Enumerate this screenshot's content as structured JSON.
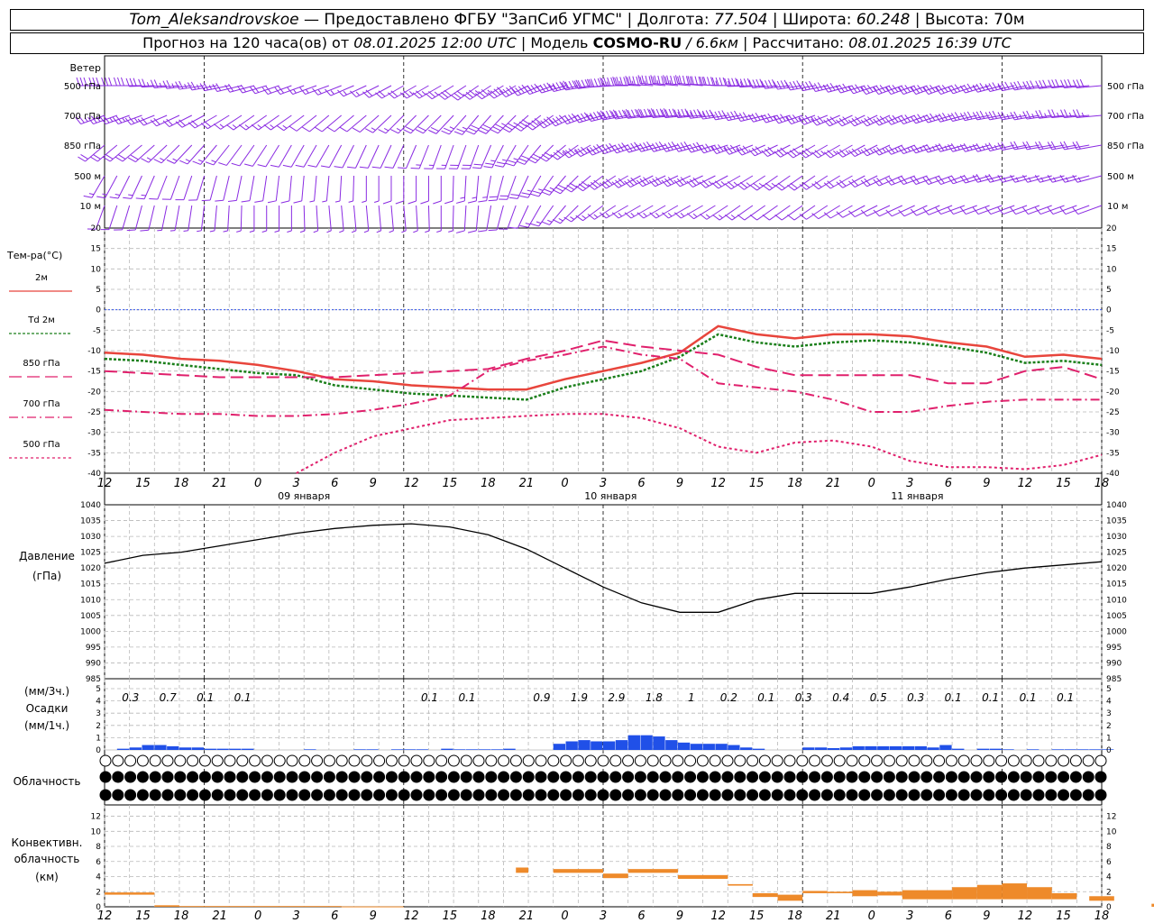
{
  "header": {
    "station": "Tom_Aleksandrovskoe",
    "provider": " — Предоставлено ФГБУ \"ЗапСиб УГМС\" | Долгота: ",
    "lon": "77.504",
    "lat_label": " | Широта: ",
    "lat": "60.248",
    "alt_label": " | Высота: 70м",
    "fc_label": "Прогноз на 120 часа(ов) от ",
    "fc_from": "08.01.2025 12:00 UTC",
    "model_label": "  | Модель ",
    "model": "COSMO-RU",
    "res": " / 6.6км",
    "calc_label": " | Рассчитано: ",
    "calc": "08.01.2025 16:39 UTC"
  },
  "colors": {
    "t2m": "#e8453c",
    "td2m": "#1a7f1a",
    "t850": "#e0206c",
    "t700": "#e0206c",
    "t500": "#e0206c",
    "wind": "#8a2be2",
    "precip": "#2050e8",
    "conv": "#ee8a2a",
    "zero": "#3355ee"
  },
  "time": {
    "hour_labels": [
      "12",
      "15",
      "18",
      "21",
      "0",
      "3",
      "6",
      "9",
      "12",
      "15",
      "18",
      "21",
      "0",
      "3",
      "6",
      "9",
      "12",
      "15",
      "18",
      "21",
      "0",
      "3",
      "6",
      "9",
      "12",
      "15",
      "18"
    ],
    "day_labels": [
      "09 января",
      "10 января",
      "11 января"
    ]
  },
  "chart_data": [
    {
      "type": "barbs",
      "title": "Ветер",
      "levels": [
        "500 гПа",
        "700 гПа",
        "850 гПа",
        "500 м",
        "10   м"
      ],
      "directions_deg": [
        [
          270,
          270,
          265,
          260,
          255,
          250,
          250,
          245,
          240,
          240,
          235,
          240,
          250,
          260,
          270,
          275,
          275,
          270,
          265,
          260,
          255,
          250,
          250,
          250,
          255,
          260,
          265
        ],
        [
          250,
          250,
          245,
          240,
          235,
          235,
          230,
          230,
          225,
          225,
          220,
          225,
          235,
          250,
          260,
          265,
          265,
          260,
          255,
          250,
          245,
          245,
          250,
          255,
          260,
          260,
          265
        ],
        [
          230,
          230,
          225,
          220,
          215,
          210,
          210,
          205,
          205,
          200,
          200,
          210,
          225,
          240,
          250,
          255,
          255,
          250,
          245,
          240,
          240,
          245,
          250,
          255,
          255,
          260,
          260
        ],
        [
          210,
          205,
          200,
          195,
          190,
          185,
          185,
          180,
          180,
          180,
          185,
          200,
          215,
          230,
          240,
          245,
          245,
          240,
          235,
          235,
          240,
          245,
          250,
          250,
          255,
          255,
          255
        ],
        [
          200,
          195,
          190,
          185,
          180,
          180,
          175,
          175,
          175,
          180,
          185,
          200,
          215,
          230,
          240,
          240,
          240,
          235,
          235,
          235,
          240,
          245,
          245,
          250,
          250,
          250,
          250
        ]
      ],
      "speeds_kt": [
        [
          30,
          30,
          25,
          25,
          20,
          20,
          15,
          15,
          20,
          25,
          30,
          40,
          45,
          50,
          55,
          55,
          50,
          45,
          40,
          40,
          35,
          35,
          35,
          35,
          35,
          30,
          30
        ],
        [
          25,
          25,
          20,
          20,
          15,
          15,
          10,
          10,
          15,
          20,
          25,
          35,
          40,
          45,
          50,
          50,
          45,
          40,
          35,
          35,
          30,
          30,
          30,
          30,
          30,
          25,
          25
        ],
        [
          20,
          20,
          15,
          15,
          10,
          10,
          10,
          10,
          10,
          15,
          20,
          25,
          30,
          35,
          40,
          40,
          40,
          35,
          30,
          30,
          25,
          25,
          25,
          25,
          25,
          20,
          20
        ],
        [
          15,
          15,
          10,
          10,
          10,
          10,
          5,
          5,
          10,
          10,
          15,
          20,
          25,
          30,
          30,
          30,
          30,
          25,
          25,
          20,
          20,
          20,
          20,
          20,
          20,
          15,
          15
        ],
        [
          10,
          10,
          5,
          5,
          5,
          5,
          5,
          5,
          5,
          5,
          10,
          10,
          15,
          15,
          15,
          15,
          15,
          15,
          10,
          10,
          10,
          10,
          10,
          10,
          10,
          10,
          10
        ]
      ]
    },
    {
      "type": "line",
      "title": "Тем-ра(°C)",
      "x": [
        "12",
        "15",
        "18",
        "21",
        "0",
        "3",
        "6",
        "9",
        "12",
        "15",
        "18",
        "21",
        "0",
        "3",
        "6",
        "9",
        "12",
        "15",
        "18",
        "21",
        "0",
        "3",
        "6",
        "9",
        "12",
        "15",
        "18"
      ],
      "ylim": [
        -40,
        20
      ],
      "yticks": [
        20,
        15,
        10,
        5,
        0,
        -5,
        -10,
        -15,
        -20,
        -25,
        -30,
        -35,
        -40
      ],
      "series": [
        {
          "name": "2м",
          "key": "t2m",
          "dash": "",
          "values": [
            -10.5,
            -11,
            -12,
            -12.5,
            -13.5,
            -15,
            -17,
            -17.5,
            -18.5,
            -19,
            -19.5,
            -19.5,
            -17,
            -15,
            -13,
            -10.5,
            -4,
            -6,
            -7,
            -6,
            -6,
            -6.5,
            -8,
            -9,
            -11.5,
            -11,
            -12
          ]
        },
        {
          "name": "Td 2м",
          "key": "td2m",
          "dash": "3,2",
          "values": [
            -12,
            -12.5,
            -13.5,
            -14.5,
            -15.5,
            -16,
            -18.5,
            -19.5,
            -20.5,
            -21,
            -21.5,
            -22,
            -19,
            -17,
            -15,
            -11.5,
            -6,
            -8,
            -9,
            -8,
            -7.5,
            -8,
            -9,
            -10.5,
            -13,
            -12.5,
            -13.5
          ]
        },
        {
          "name": "850 гПа",
          "key": "t850",
          "dash": "14,6",
          "values": [
            -15,
            -15.5,
            -16,
            -16.5,
            -16.5,
            -16.5,
            -16.5,
            -16,
            -15.5,
            -15,
            -14.5,
            -12,
            -10,
            -7.5,
            -9,
            -10,
            -11,
            -14,
            -16,
            -16,
            -16,
            -16,
            -18,
            -18,
            -15,
            -14,
            -17
          ]
        },
        {
          "name": "700 гПа",
          "key": "t700",
          "dash": "10,4,2,4",
          "values": [
            -24.5,
            -25,
            -25.5,
            -25.5,
            -26,
            -26,
            -25.5,
            -24.5,
            -23,
            -21,
            -15,
            -12.5,
            -11,
            -9,
            -11,
            -12,
            -18,
            -19,
            -20,
            -22,
            -25,
            -25,
            -23.5,
            -22.5,
            -22,
            -22,
            -22
          ]
        },
        {
          "name": "500 гПа",
          "key": "t500",
          "dash": "3,3",
          "values": [
            null,
            null,
            null,
            null,
            null,
            -40,
            -35,
            -31,
            -29,
            -27,
            -26.5,
            -26,
            -25.5,
            -25.5,
            -26.5,
            -29,
            -33.5,
            -35,
            -32.5,
            -32,
            -33.5,
            -37,
            -38.5,
            -38.5,
            -39,
            -38,
            -35.5
          ]
        }
      ]
    },
    {
      "type": "line",
      "title": "Давление",
      "unit": "(гПа)",
      "ylim": [
        985,
        1040
      ],
      "yticks": [
        1040,
        1035,
        1030,
        1025,
        1020,
        1015,
        1010,
        1005,
        1000,
        995,
        990,
        985
      ],
      "values": [
        1021.5,
        1024,
        1025,
        1027,
        1029,
        1031,
        1032.5,
        1033.5,
        1034,
        1033,
        1030.5,
        1026,
        1020,
        1014,
        1009,
        1006,
        1006,
        1010,
        1012,
        1012,
        1012,
        1014,
        1016.5,
        1018.5,
        1020,
        1021,
        1022
      ]
    },
    {
      "type": "bar",
      "title": "Осадки",
      "unit_top": "(мм/3ч.)",
      "unit_bottom": "(мм/1ч.)",
      "ylim": [
        0,
        5
      ],
      "yticks": [
        5,
        4,
        3,
        2,
        1,
        0
      ],
      "labels_3h": [
        "0.3",
        "0.7",
        "0.1",
        "0.1",
        "",
        "",
        "",
        "",
        "0.1",
        "0.1",
        "",
        "0.9",
        "1.9",
        "2.9",
        "1.8",
        "1",
        "0.2",
        "0.1",
        "0.3",
        "0.4",
        "0.5",
        "0.3",
        "0.1",
        "0.1",
        "0.1",
        "0.1"
      ],
      "values_1h": [
        0,
        0.1,
        0.2,
        0.4,
        0.4,
        0.3,
        0.2,
        0.2,
        0.1,
        0.1,
        0.1,
        0.1,
        0,
        0,
        0,
        0,
        0.05,
        0,
        0,
        0,
        0.05,
        0.05,
        0,
        0.05,
        0.05,
        0.05,
        0,
        0.1,
        0.05,
        0.05,
        0.05,
        0.05,
        0.1,
        0,
        0,
        0,
        0.5,
        0.7,
        0.8,
        0.7,
        0.7,
        0.8,
        1.2,
        1.2,
        1.1,
        0.8,
        0.6,
        0.5,
        0.5,
        0.5,
        0.4,
        0.2,
        0.1,
        0,
        0,
        0,
        0.2,
        0.2,
        0.15,
        0.2,
        0.3,
        0.3,
        0.3,
        0.3,
        0.3,
        0.3,
        0.2,
        0.4,
        0.1,
        0,
        0.1,
        0.1,
        0.05,
        0,
        0.05,
        0,
        0.05,
        0.05,
        0.05,
        0.05,
        0.05
      ]
    },
    {
      "type": "symbols",
      "title": "Облачность",
      "rows": [
        [
          0,
          0,
          0,
          0,
          0,
          0,
          0,
          0,
          0,
          0,
          0,
          0,
          0,
          0,
          0,
          0,
          0,
          0,
          0,
          0,
          0,
          0,
          0,
          0,
          0,
          0,
          0,
          0,
          0,
          0,
          0,
          0,
          0,
          0,
          0,
          0,
          0,
          0,
          0,
          0,
          0,
          0,
          0,
          0,
          0,
          0,
          0,
          0,
          0,
          0,
          0,
          0,
          0,
          0,
          0,
          0,
          0,
          0,
          0,
          0,
          0,
          0,
          0,
          0,
          0,
          0,
          0,
          0,
          0,
          0,
          0,
          0,
          0,
          0,
          0,
          0,
          0,
          0,
          0,
          0,
          0
        ],
        [
          8,
          8,
          8,
          8,
          8,
          8,
          8,
          8,
          8,
          8,
          8,
          8,
          8,
          8,
          8,
          8,
          8,
          8,
          8,
          8,
          8,
          8,
          8,
          8,
          8,
          8,
          8,
          8,
          8,
          8,
          8,
          8,
          8,
          8,
          8,
          8,
          8,
          8,
          8,
          8,
          8,
          8,
          8,
          8,
          8,
          8,
          8,
          8,
          8,
          8,
          8,
          8,
          8,
          8,
          8,
          8,
          8,
          8,
          8,
          8,
          8,
          8,
          8,
          8,
          8,
          8,
          8,
          8,
          8,
          8,
          8,
          8,
          8,
          8,
          8,
          8,
          8,
          8,
          8,
          8,
          8
        ],
        [
          8,
          8,
          8,
          8,
          8,
          8,
          8,
          8,
          8,
          8,
          8,
          8,
          8,
          8,
          8,
          8,
          8,
          8,
          8,
          8,
          8,
          8,
          8,
          8,
          8,
          8,
          8,
          8,
          8,
          8,
          8,
          8,
          8,
          8,
          8,
          8,
          8,
          8,
          8,
          8,
          8,
          8,
          8,
          8,
          8,
          8,
          8,
          8,
          8,
          8,
          8,
          8,
          8,
          8,
          8,
          8,
          8,
          8,
          8,
          8,
          8,
          8,
          8,
          8,
          8,
          8,
          8,
          8,
          8,
          8,
          8,
          8,
          8,
          8,
          8,
          8,
          8,
          8,
          8,
          8,
          8
        ]
      ]
    },
    {
      "type": "bar",
      "title": "Конвективн.",
      "title2": "облачность",
      "unit": "(км)",
      "ylim": [
        0,
        13
      ],
      "yticks": [
        12,
        10,
        8,
        6,
        4,
        2,
        0
      ],
      "bars": [
        {
          "x0": 0,
          "x1": 4,
          "base": 1.6,
          "top": 1.9
        },
        {
          "x0": 4,
          "x1": 6,
          "base": 0,
          "top": 0.2
        },
        {
          "x0": 6,
          "x1": 19,
          "base": 0,
          "top": 0.1
        },
        {
          "x0": 19,
          "x1": 24,
          "base": 0,
          "top": 0.05
        },
        {
          "x0": 33,
          "x1": 34,
          "base": 4.5,
          "top": 5.2
        },
        {
          "x0": 36,
          "x1": 40,
          "base": 4.5,
          "top": 5
        },
        {
          "x0": 40,
          "x1": 42,
          "base": 3.8,
          "top": 4.4
        },
        {
          "x0": 42,
          "x1": 46,
          "base": 4.5,
          "top": 5
        },
        {
          "x0": 46,
          "x1": 50,
          "base": 3.7,
          "top": 4.2
        },
        {
          "x0": 50,
          "x1": 52,
          "base": 2.8,
          "top": 3
        },
        {
          "x0": 52,
          "x1": 54,
          "base": 1.3,
          "top": 1.8
        },
        {
          "x0": 54,
          "x1": 56,
          "base": 0.8,
          "top": 1.6
        },
        {
          "x0": 56,
          "x1": 58,
          "base": 1.8,
          "top": 2.1
        },
        {
          "x0": 58,
          "x1": 60,
          "base": 1.8,
          "top": 2
        },
        {
          "x0": 60,
          "x1": 62,
          "base": 1.4,
          "top": 2.2
        },
        {
          "x0": 62,
          "x1": 64,
          "base": 1.5,
          "top": 2
        },
        {
          "x0": 64,
          "x1": 68,
          "base": 1.0,
          "top": 2.2
        },
        {
          "x0": 68,
          "x1": 70,
          "base": 1.0,
          "top": 2.6
        },
        {
          "x0": 70,
          "x1": 72,
          "base": 1.0,
          "top": 2.9
        },
        {
          "x0": 72,
          "x1": 74,
          "base": 1.0,
          "top": 3.1
        },
        {
          "x0": 74,
          "x1": 76,
          "base": 1.0,
          "top": 2.6
        },
        {
          "x0": 76,
          "x1": 78,
          "base": 1.0,
          "top": 1.8
        },
        {
          "x0": 79,
          "x1": 81,
          "base": 0.8,
          "top": 1.4
        },
        {
          "x0": 84,
          "x1": 87,
          "base": 0,
          "top": 0.4
        }
      ]
    }
  ]
}
